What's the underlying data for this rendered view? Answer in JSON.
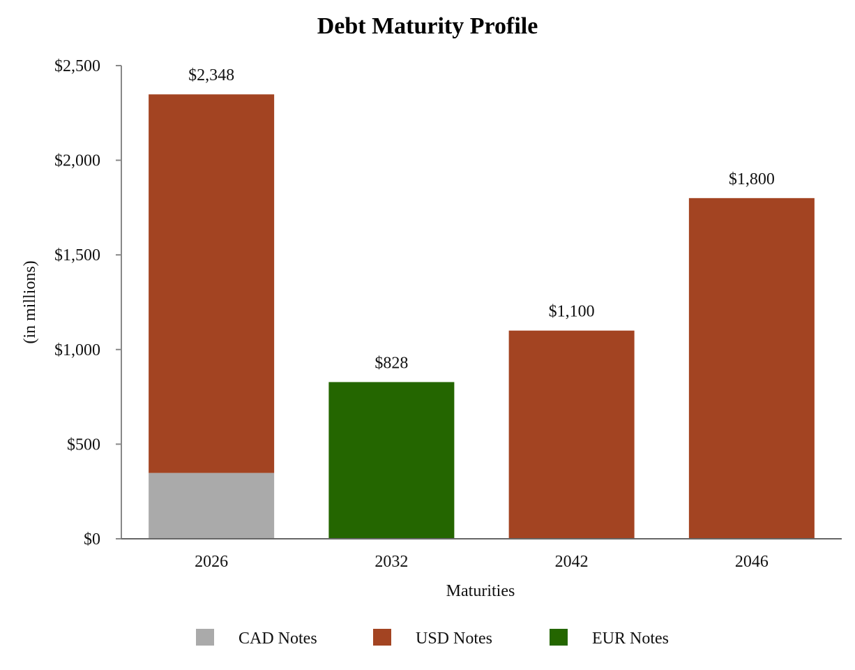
{
  "chart_data": {
    "type": "bar",
    "stacked": true,
    "title": "Debt Maturity Profile",
    "xlabel": "Maturities",
    "ylabel": "(in millions)",
    "categories": [
      "2026",
      "2032",
      "2042",
      "2046"
    ],
    "series": [
      {
        "name": "CAD Notes",
        "color": "#aaaaaa",
        "values": [
          348,
          0,
          0,
          0
        ]
      },
      {
        "name": "USD Notes",
        "color": "#a34422",
        "values": [
          2000,
          0,
          1100,
          1800
        ]
      },
      {
        "name": "EUR Notes",
        "color": "#246600",
        "values": [
          0,
          828,
          0,
          0
        ]
      }
    ],
    "totals": [
      2348,
      828,
      1100,
      1800
    ],
    "total_labels": [
      "$2,348",
      "$828",
      "$1,100",
      "$1,800"
    ],
    "ylim": [
      0,
      2500
    ],
    "yticks": [
      0,
      500,
      1000,
      1500,
      2000,
      2500
    ],
    "ytick_labels": [
      "$0",
      "$500",
      "$1,000",
      "$1,500",
      "$2,000",
      "$2,500"
    ],
    "legend_position": "bottom",
    "grid": false
  }
}
